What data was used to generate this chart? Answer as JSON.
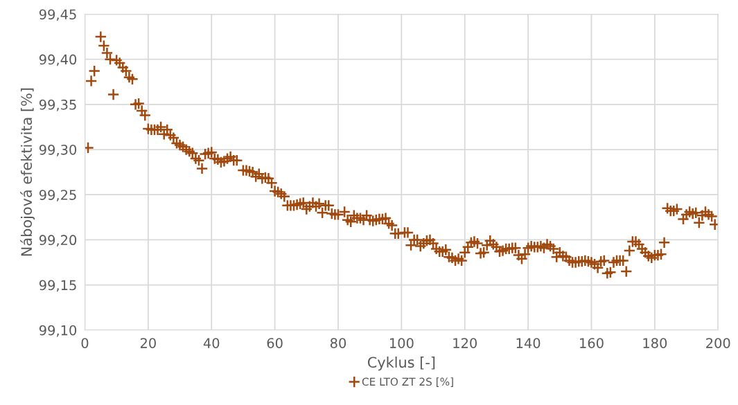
{
  "chart_data": {
    "type": "scatter",
    "xlabel": "Cyklus [-]",
    "ylabel": "Nábojová efektivita [%]",
    "xlim": [
      0,
      200
    ],
    "xticks": [
      0,
      20,
      40,
      60,
      80,
      100,
      120,
      140,
      160,
      180,
      200
    ],
    "ylim": [
      99.1,
      99.45
    ],
    "yticks": [
      {
        "value": 99.1,
        "label": "99,10"
      },
      {
        "value": 99.15,
        "label": "99,15"
      },
      {
        "value": 99.2,
        "label": "99,20"
      },
      {
        "value": 99.25,
        "label": "99,25"
      },
      {
        "value": 99.3,
        "label": "99,30"
      },
      {
        "value": 99.35,
        "label": "99,35"
      },
      {
        "value": 99.4,
        "label": "99,40"
      },
      {
        "value": 99.45,
        "label": "99,45"
      }
    ],
    "grid": true,
    "legend": "bottom",
    "marker": "cross",
    "series": [
      {
        "name": "CE LTO ZT 2S [%]",
        "color": "#a0490f",
        "x": [
          1,
          2,
          3,
          5,
          6,
          7,
          8,
          9,
          10,
          11,
          12,
          13,
          14,
          15,
          16,
          17,
          18,
          19,
          20,
          21,
          22,
          23,
          24,
          25,
          26,
          27,
          28,
          29,
          30,
          31,
          32,
          33,
          34,
          35,
          36,
          37,
          38,
          39,
          40,
          41,
          42,
          43,
          44,
          45,
          46,
          47,
          48,
          50,
          51,
          52,
          53,
          54,
          55,
          56,
          57,
          58,
          59,
          60,
          61,
          62,
          63,
          64,
          65,
          66,
          67,
          68,
          69,
          70,
          71,
          72,
          73,
          74,
          75,
          76,
          77,
          78,
          79,
          80,
          82,
          83,
          84,
          85,
          86,
          87,
          88,
          89,
          90,
          91,
          92,
          93,
          94,
          95,
          96,
          97,
          98,
          99,
          101,
          102,
          103,
          104,
          105,
          106,
          107,
          108,
          109,
          110,
          111,
          112,
          113,
          114,
          115,
          116,
          117,
          118,
          119,
          120,
          121,
          122,
          123,
          124,
          125,
          126,
          127,
          128,
          129,
          130,
          131,
          132,
          133,
          134,
          135,
          136,
          137,
          138,
          139,
          140,
          141,
          142,
          143,
          144,
          145,
          146,
          147,
          148,
          149,
          150,
          151,
          152,
          153,
          154,
          155,
          156,
          157,
          158,
          159,
          160,
          161,
          162,
          163,
          164,
          165,
          166,
          167,
          168,
          169,
          170,
          171,
          172,
          173,
          174,
          175,
          176,
          177,
          178,
          179,
          180,
          181,
          182,
          183,
          184,
          185,
          186,
          187,
          189,
          190,
          191,
          192,
          193,
          194,
          195,
          196,
          197,
          198,
          199
        ],
        "values": [
          99.302,
          99.376,
          99.387,
          99.425,
          99.415,
          99.407,
          99.4,
          99.361,
          99.399,
          99.396,
          99.391,
          99.387,
          99.38,
          99.378,
          99.35,
          99.351,
          99.343,
          99.338,
          99.323,
          99.322,
          99.322,
          99.322,
          99.325,
          99.317,
          99.322,
          99.316,
          99.313,
          99.307,
          99.305,
          99.303,
          99.3,
          99.298,
          99.296,
          99.29,
          99.288,
          99.279,
          99.295,
          99.296,
          99.297,
          99.29,
          99.289,
          99.286,
          99.287,
          99.29,
          99.292,
          99.288,
          99.288,
          99.277,
          99.277,
          99.276,
          99.275,
          99.27,
          99.273,
          99.268,
          99.269,
          99.268,
          99.263,
          99.254,
          99.253,
          99.251,
          99.248,
          99.238,
          99.238,
          99.238,
          99.239,
          99.24,
          99.241,
          99.234,
          99.237,
          99.241,
          99.237,
          99.24,
          99.23,
          99.238,
          99.238,
          99.229,
          99.228,
          99.228,
          99.231,
          99.222,
          99.22,
          99.227,
          99.224,
          99.224,
          99.222,
          99.227,
          99.222,
          99.221,
          99.222,
          99.223,
          99.223,
          99.224,
          99.218,
          99.216,
          99.207,
          99.207,
          99.208,
          99.208,
          99.194,
          99.2,
          99.2,
          99.193,
          99.196,
          99.199,
          99.2,
          99.196,
          99.19,
          99.187,
          99.187,
          99.189,
          99.181,
          99.18,
          99.177,
          99.179,
          99.177,
          99.186,
          99.192,
          99.197,
          99.198,
          99.196,
          99.185,
          99.186,
          99.194,
          99.199,
          99.195,
          99.192,
          99.187,
          99.188,
          99.19,
          99.19,
          99.191,
          99.191,
          99.183,
          99.179,
          99.184,
          99.191,
          99.193,
          99.192,
          99.192,
          99.193,
          99.191,
          99.195,
          99.193,
          99.19,
          99.181,
          99.186,
          99.182,
          99.181,
          99.177,
          99.175,
          99.175,
          99.176,
          99.176,
          99.177,
          99.176,
          99.175,
          99.173,
          99.169,
          99.176,
          99.177,
          99.163,
          99.164,
          99.175,
          99.177,
          99.177,
          99.177,
          99.165,
          99.188,
          99.198,
          99.198,
          99.195,
          99.19,
          99.186,
          99.182,
          99.18,
          99.183,
          99.183,
          99.184,
          99.197,
          99.235,
          99.232,
          99.232,
          99.234,
          99.223,
          99.228,
          99.231,
          99.229,
          99.23,
          99.219,
          99.227,
          99.231,
          99.228,
          99.226,
          99.217
        ]
      }
    ]
  }
}
